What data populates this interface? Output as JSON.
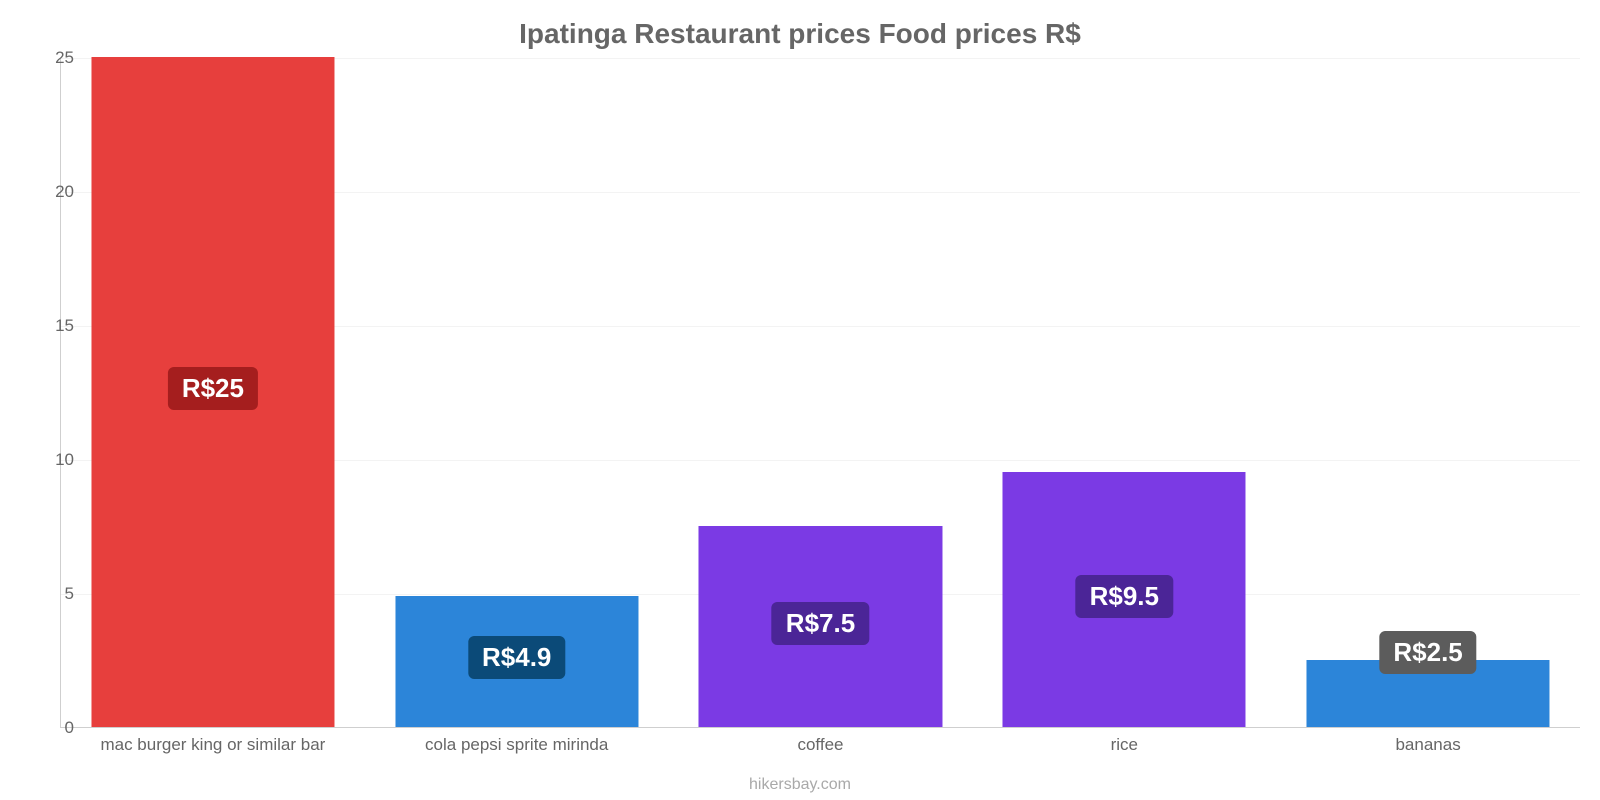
{
  "chart": {
    "type": "bar",
    "title": "Ipatinga Restaurant prices Food prices R$",
    "title_color": "#666666",
    "title_fontsize": 28,
    "source_label": "hikersbay.com",
    "source_color": "#a9a9a9",
    "background_color": "#ffffff",
    "axis_color": "#cfcfcf",
    "grid_color": "#f3f3f3",
    "tick_color": "#666666",
    "tick_fontsize": 17,
    "xlabel_fontsize": 17,
    "value_fontsize": 26,
    "ylim": [
      0,
      25
    ],
    "ytick_step": 5,
    "yticks": [
      0,
      5,
      10,
      15,
      20,
      25
    ],
    "bar_width_pct": 80,
    "badge_radius": 6,
    "categories": [
      "mac burger king or similar bar",
      "cola pepsi sprite mirinda",
      "coffee",
      "rice",
      "bananas"
    ],
    "values": [
      25,
      4.9,
      7.5,
      9.5,
      2.5
    ],
    "value_labels": [
      "R$25",
      "R$4.9",
      "R$7.5",
      "R$9.5",
      "R$2.5"
    ],
    "bar_colors": [
      "#e73f3d",
      "#2c85d9",
      "#7b3ae4",
      "#7b3ae4",
      "#2c85d9"
    ],
    "badge_colors": [
      "#a51e1e",
      "#0b4a78",
      "#4b2597",
      "#4b2597",
      "#5c5c5c"
    ]
  }
}
